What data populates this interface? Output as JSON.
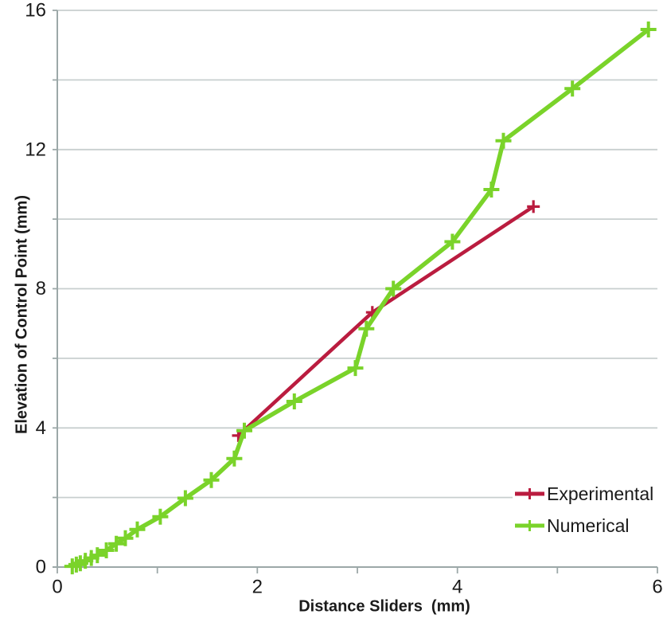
{
  "chart_data": {
    "type": "line",
    "title": "",
    "xlabel": "Distance Sliders  (mm)",
    "ylabel": "Elevation of Control Point (mm)",
    "xlim": [
      0,
      6
    ],
    "ylim": [
      0,
      16
    ],
    "x_ticks": [
      0,
      1,
      2,
      3,
      4,
      5,
      6
    ],
    "x_label_ticks": [
      0,
      2,
      4,
      6
    ],
    "y_grid_ticks": [
      0,
      2,
      4,
      6,
      8,
      10,
      12,
      14,
      16
    ],
    "y_label_ticks": [
      0,
      4,
      8,
      12,
      16
    ],
    "grid": true,
    "legend_position": "lower-right",
    "series": [
      {
        "name": "Experimental",
        "color": "#BA1C3F",
        "line_width": 4.5,
        "marker": "plus",
        "marker_half": 8,
        "marker_stroke": 3.2,
        "points": [
          [
            1.81,
            3.78
          ],
          [
            3.15,
            7.32
          ],
          [
            4.76,
            10.36
          ]
        ]
      },
      {
        "name": "Numerical",
        "color": "#7AD32A",
        "line_width": 5.5,
        "marker": "plus",
        "marker_half": 10,
        "marker_stroke": 4,
        "points": [
          [
            0.15,
            0.02
          ],
          [
            0.19,
            0.07
          ],
          [
            0.23,
            0.11
          ],
          [
            0.28,
            0.18
          ],
          [
            0.34,
            0.26
          ],
          [
            0.4,
            0.34
          ],
          [
            0.49,
            0.48
          ],
          [
            0.59,
            0.67
          ],
          [
            0.68,
            0.83
          ],
          [
            0.8,
            1.08
          ],
          [
            1.03,
            1.45
          ],
          [
            1.28,
            1.98
          ],
          [
            1.54,
            2.5
          ],
          [
            1.77,
            3.12
          ],
          [
            1.87,
            3.92
          ],
          [
            2.37,
            4.76
          ],
          [
            2.98,
            5.72
          ],
          [
            3.09,
            6.85
          ],
          [
            3.36,
            8.0
          ],
          [
            3.95,
            9.35
          ],
          [
            4.34,
            10.85
          ],
          [
            4.46,
            12.25
          ],
          [
            5.15,
            13.75
          ],
          [
            5.91,
            15.45
          ]
        ]
      }
    ],
    "colors": {
      "text": "#1A1A1A",
      "grid": "#C8CFCF",
      "axis": "#9CA8A8",
      "background": "#FFFFFF"
    }
  }
}
